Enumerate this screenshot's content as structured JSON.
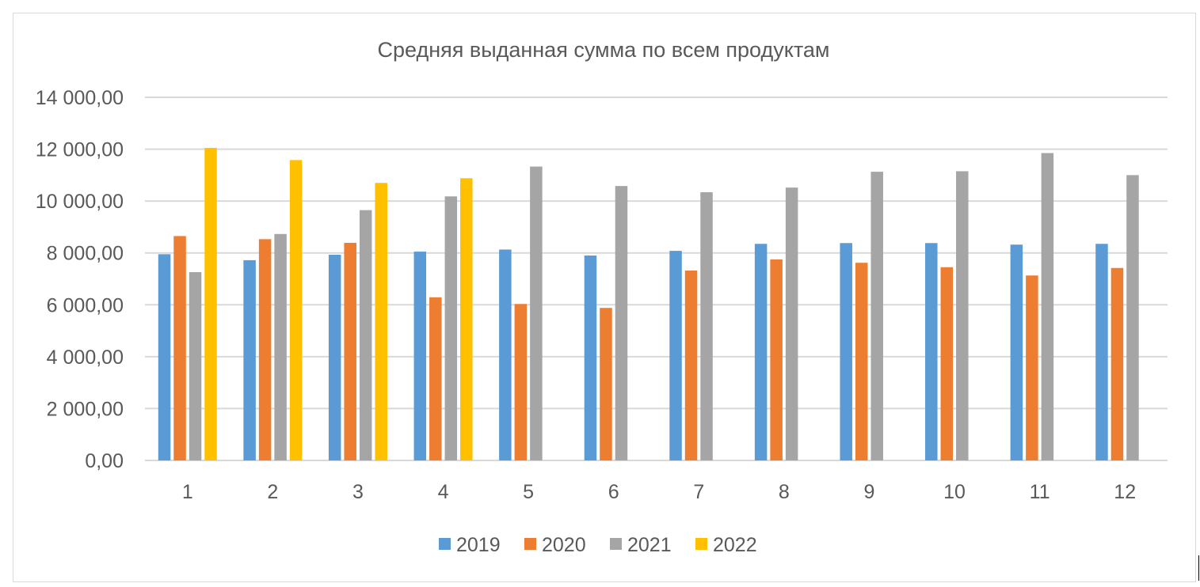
{
  "chart_data": {
    "type": "bar",
    "title": "Средняя выданная сумма по всем продуктам",
    "categories": [
      "1",
      "2",
      "3",
      "4",
      "5",
      "6",
      "7",
      "8",
      "9",
      "10",
      "11",
      "12"
    ],
    "series": [
      {
        "name": "2019",
        "color": "#5b9bd5",
        "values": [
          7950,
          7720,
          7930,
          8050,
          8130,
          7900,
          8080,
          8350,
          8380,
          8380,
          8320,
          8350
        ]
      },
      {
        "name": "2020",
        "color": "#ed7d31",
        "values": [
          8650,
          8530,
          8390,
          6290,
          6030,
          5880,
          7320,
          7750,
          7620,
          7450,
          7130,
          7420
        ]
      },
      {
        "name": "2021",
        "color": "#a5a5a5",
        "values": [
          7260,
          8730,
          9650,
          10180,
          11330,
          10580,
          10340,
          10520,
          11130,
          11150,
          11850,
          11000
        ]
      },
      {
        "name": "2022",
        "color": "#ffc000",
        "values": [
          12050,
          11580,
          10700,
          10880,
          null,
          null,
          null,
          null,
          null,
          null,
          null,
          null
        ]
      }
    ],
    "y_ticks": [
      "0,00",
      "2 000,00",
      "4 000,00",
      "6 000,00",
      "8 000,00",
      "10 000,00",
      "12 000,00",
      "14 000,00"
    ],
    "ylim": [
      0,
      14000
    ],
    "y_step": 2000,
    "grid": true,
    "legend_position": "bottom",
    "gridline_color": "#d9d9d9"
  }
}
